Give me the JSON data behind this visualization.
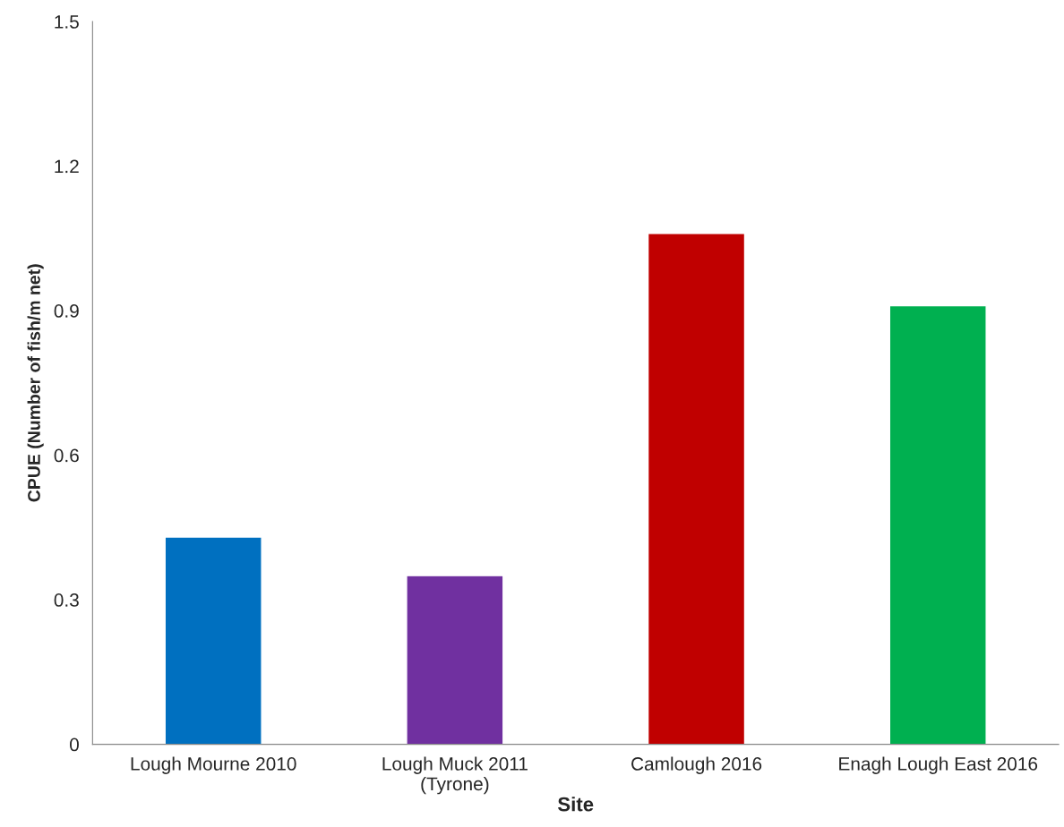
{
  "chart_data": {
    "type": "bar",
    "categories": [
      "Lough Mourne 2010",
      "Lough Muck 2011\n(Tyrone)",
      "Camlough 2016",
      "Enagh Lough East 2016"
    ],
    "values": [
      0.43,
      0.35,
      1.06,
      0.91
    ],
    "colors": [
      "#0070c0",
      "#7030a0",
      "#c00000",
      "#00b050"
    ],
    "xlabel": "Site",
    "ylabel": "CPUE (Number of fish/m net)",
    "ylim": [
      0,
      1.5
    ],
    "yticks": [
      {
        "value": 0,
        "label": "0"
      },
      0.3,
      0.6,
      0.9,
      1.2,
      1.5
    ],
    "grid": false
  }
}
